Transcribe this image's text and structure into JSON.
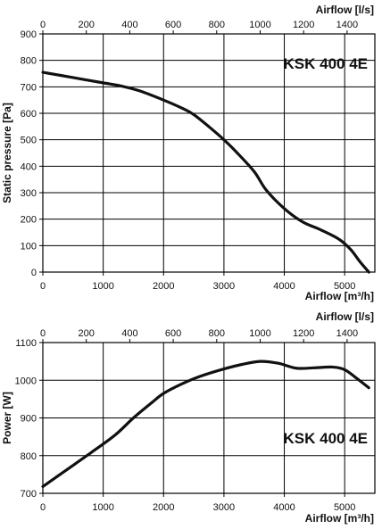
{
  "chart_data": [
    {
      "type": "line",
      "title": "",
      "annotation": "KSK 400 4E",
      "xlabel": "Airflow [m³/h]",
      "x2label": "Airflow [l/s]",
      "ylabel": "Static pressure [Pa]",
      "xlim": [
        0,
        5500
      ],
      "x2lim": [
        0,
        1527.8
      ],
      "ylim": [
        0,
        900
      ],
      "xticks": [
        0,
        1000,
        2000,
        3000,
        4000,
        5000
      ],
      "x2ticks": [
        0,
        200,
        400,
        600,
        800,
        1000,
        1200,
        1400
      ],
      "yticks": [
        0,
        100,
        200,
        300,
        400,
        500,
        600,
        700,
        800,
        900
      ],
      "grid": true,
      "series": [
        {
          "x": [
            0,
            500,
            1000,
            1300,
            1600,
            2000,
            2300,
            2500,
            2800,
            3000,
            3200,
            3500,
            3700,
            4000,
            4300,
            4600,
            4900,
            5100,
            5250,
            5400
          ],
          "y": [
            755,
            735,
            715,
            703,
            685,
            650,
            620,
            595,
            540,
            500,
            455,
            380,
            310,
            240,
            190,
            160,
            125,
            85,
            40,
            0
          ]
        }
      ]
    },
    {
      "type": "line",
      "title": "",
      "annotation": "KSK 400 4E",
      "xlabel": "Airflow [m³/h]",
      "x2label": "Airflow [l/s]",
      "ylabel": "Power [W]",
      "xlim": [
        0,
        5500
      ],
      "x2lim": [
        0,
        1527.8
      ],
      "ylim": [
        700,
        1100
      ],
      "xticks": [
        0,
        1000,
        2000,
        3000,
        4000,
        5000
      ],
      "x2ticks": [
        0,
        200,
        400,
        600,
        800,
        1000,
        1200,
        1400
      ],
      "yticks": [
        700,
        800,
        900,
        1000,
        1100
      ],
      "grid": true,
      "series": [
        {
          "x": [
            0,
            400,
            800,
            1200,
            1500,
            1800,
            2000,
            2300,
            2600,
            3000,
            3300,
            3600,
            3900,
            4200,
            4500,
            4800,
            5000,
            5200,
            5400
          ],
          "y": [
            718,
            763,
            808,
            855,
            900,
            940,
            965,
            990,
            1010,
            1030,
            1042,
            1050,
            1045,
            1032,
            1033,
            1035,
            1028,
            1005,
            980
          ]
        }
      ]
    }
  ]
}
